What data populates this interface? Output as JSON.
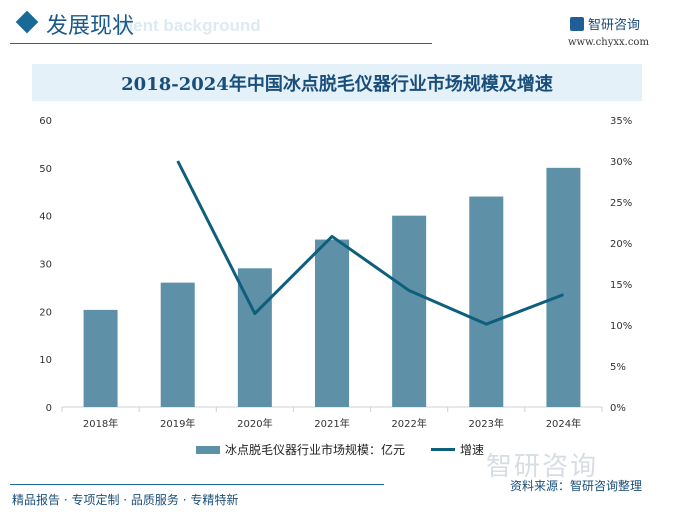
{
  "header": {
    "section_title": "发展现状",
    "section_bg_text": "ment background",
    "logo_text": "智研咨询",
    "logo_url": "www.chyxx.com"
  },
  "chart_data": {
    "type": "bar+line",
    "title": "2018-2024年中国冰点脱毛仪器行业市场规模及增速",
    "categories": [
      "2018年",
      "2019年",
      "2020年",
      "2021年",
      "2022年",
      "2023年",
      "2024年"
    ],
    "series": [
      {
        "name": "冰点脱毛仪器行业市场规模：亿元",
        "type": "bar",
        "axis": "left",
        "values": [
          20.3,
          26,
          29,
          35,
          40,
          44,
          50
        ],
        "color": "#5e90a8"
      },
      {
        "name": "增速",
        "type": "line",
        "axis": "right",
        "values": [
          null,
          30.0,
          11.4,
          20.8,
          14.2,
          10.1,
          13.7
        ],
        "color": "#0e5f7c"
      }
    ],
    "left_axis": {
      "ylim": [
        0,
        60
      ],
      "ticks": [
        "0",
        "10",
        "20",
        "30",
        "40",
        "50",
        "60"
      ]
    },
    "right_axis": {
      "ylim": [
        0,
        35
      ],
      "ticks": [
        "0%",
        "5%",
        "10%",
        "15%",
        "20%",
        "25%",
        "30%",
        "35%"
      ]
    },
    "grid": false,
    "legend": "bottom"
  },
  "watermark": "智研咨询",
  "footer": {
    "slogan": "精品报告 · 专项定制 · 品质服务 · 专精特新",
    "source": "资料来源：智研咨询整理"
  }
}
